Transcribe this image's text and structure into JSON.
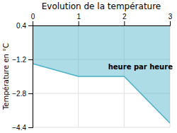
{
  "chart_data": {
    "type": "line",
    "title": "Evolution de la température",
    "y_label": "Température en °C",
    "x": [
      0,
      1,
      2,
      3
    ],
    "values": [
      -1.4,
      -2.0,
      -2.0,
      -4.2
    ],
    "fill_top": 0.4,
    "color": "#4ab0c8",
    "xlim": [
      0,
      3
    ],
    "ylim": [
      -4.4,
      0.4
    ],
    "xticks": [
      0,
      1,
      2,
      3
    ],
    "yticks": [
      {
        "value": 0.4,
        "label": "0.4"
      },
      {
        "value": -1.2,
        "label": "−1.2"
      },
      {
        "value": -2.8,
        "label": "−2.8"
      },
      {
        "value": -4.4,
        "label": "−4.4"
      }
    ],
    "grid": true,
    "annotations": [
      {
        "text": "heure par heure",
        "x": 1.65,
        "y": -1.55
      }
    ]
  }
}
